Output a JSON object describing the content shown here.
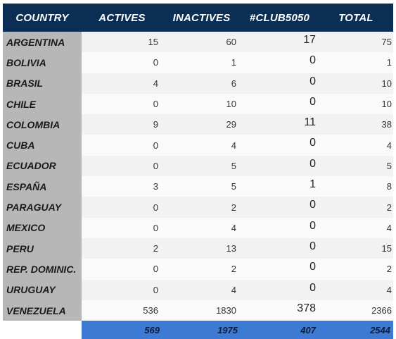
{
  "table": {
    "headers": [
      "COUNTRY",
      "ACTIVES",
      "INACTIVES",
      "#CLUB5050",
      "TOTAL"
    ],
    "rows": [
      [
        "ARGENTINA",
        "15",
        "60",
        "17",
        "75"
      ],
      [
        "BOLIVIA",
        "0",
        "1",
        "0",
        "1"
      ],
      [
        "BRASIL",
        "4",
        "6",
        "0",
        "10"
      ],
      [
        "CHILE",
        "0",
        "10",
        "0",
        "10"
      ],
      [
        "COLOMBIA",
        "9",
        "29",
        "11",
        "38"
      ],
      [
        "CUBA",
        "0",
        "4",
        "0",
        "4"
      ],
      [
        "ECUADOR",
        "0",
        "5",
        "0",
        "5"
      ],
      [
        "ESPAÑA",
        "3",
        "5",
        "1",
        "8"
      ],
      [
        "PARAGUAY",
        "0",
        "2",
        "0",
        "2"
      ],
      [
        "MEXICO",
        "0",
        "4",
        "0",
        "4"
      ],
      [
        "PERU",
        "2",
        "13",
        "0",
        "15"
      ],
      [
        "REP. DOMINIC.",
        "0",
        "2",
        "0",
        "2"
      ],
      [
        "URUGUAY",
        "0",
        "4",
        "0",
        "4"
      ],
      [
        "VENEZUELA",
        "536",
        "1830",
        "378",
        "2366"
      ]
    ],
    "totals": [
      "",
      "569",
      "1975",
      "407",
      "2544"
    ]
  },
  "colors": {
    "header_bg": "#0b2e55",
    "header_text": "#ffffff",
    "country_bg": "#b7b7b7",
    "totals_bg": "#3d7ad4"
  }
}
